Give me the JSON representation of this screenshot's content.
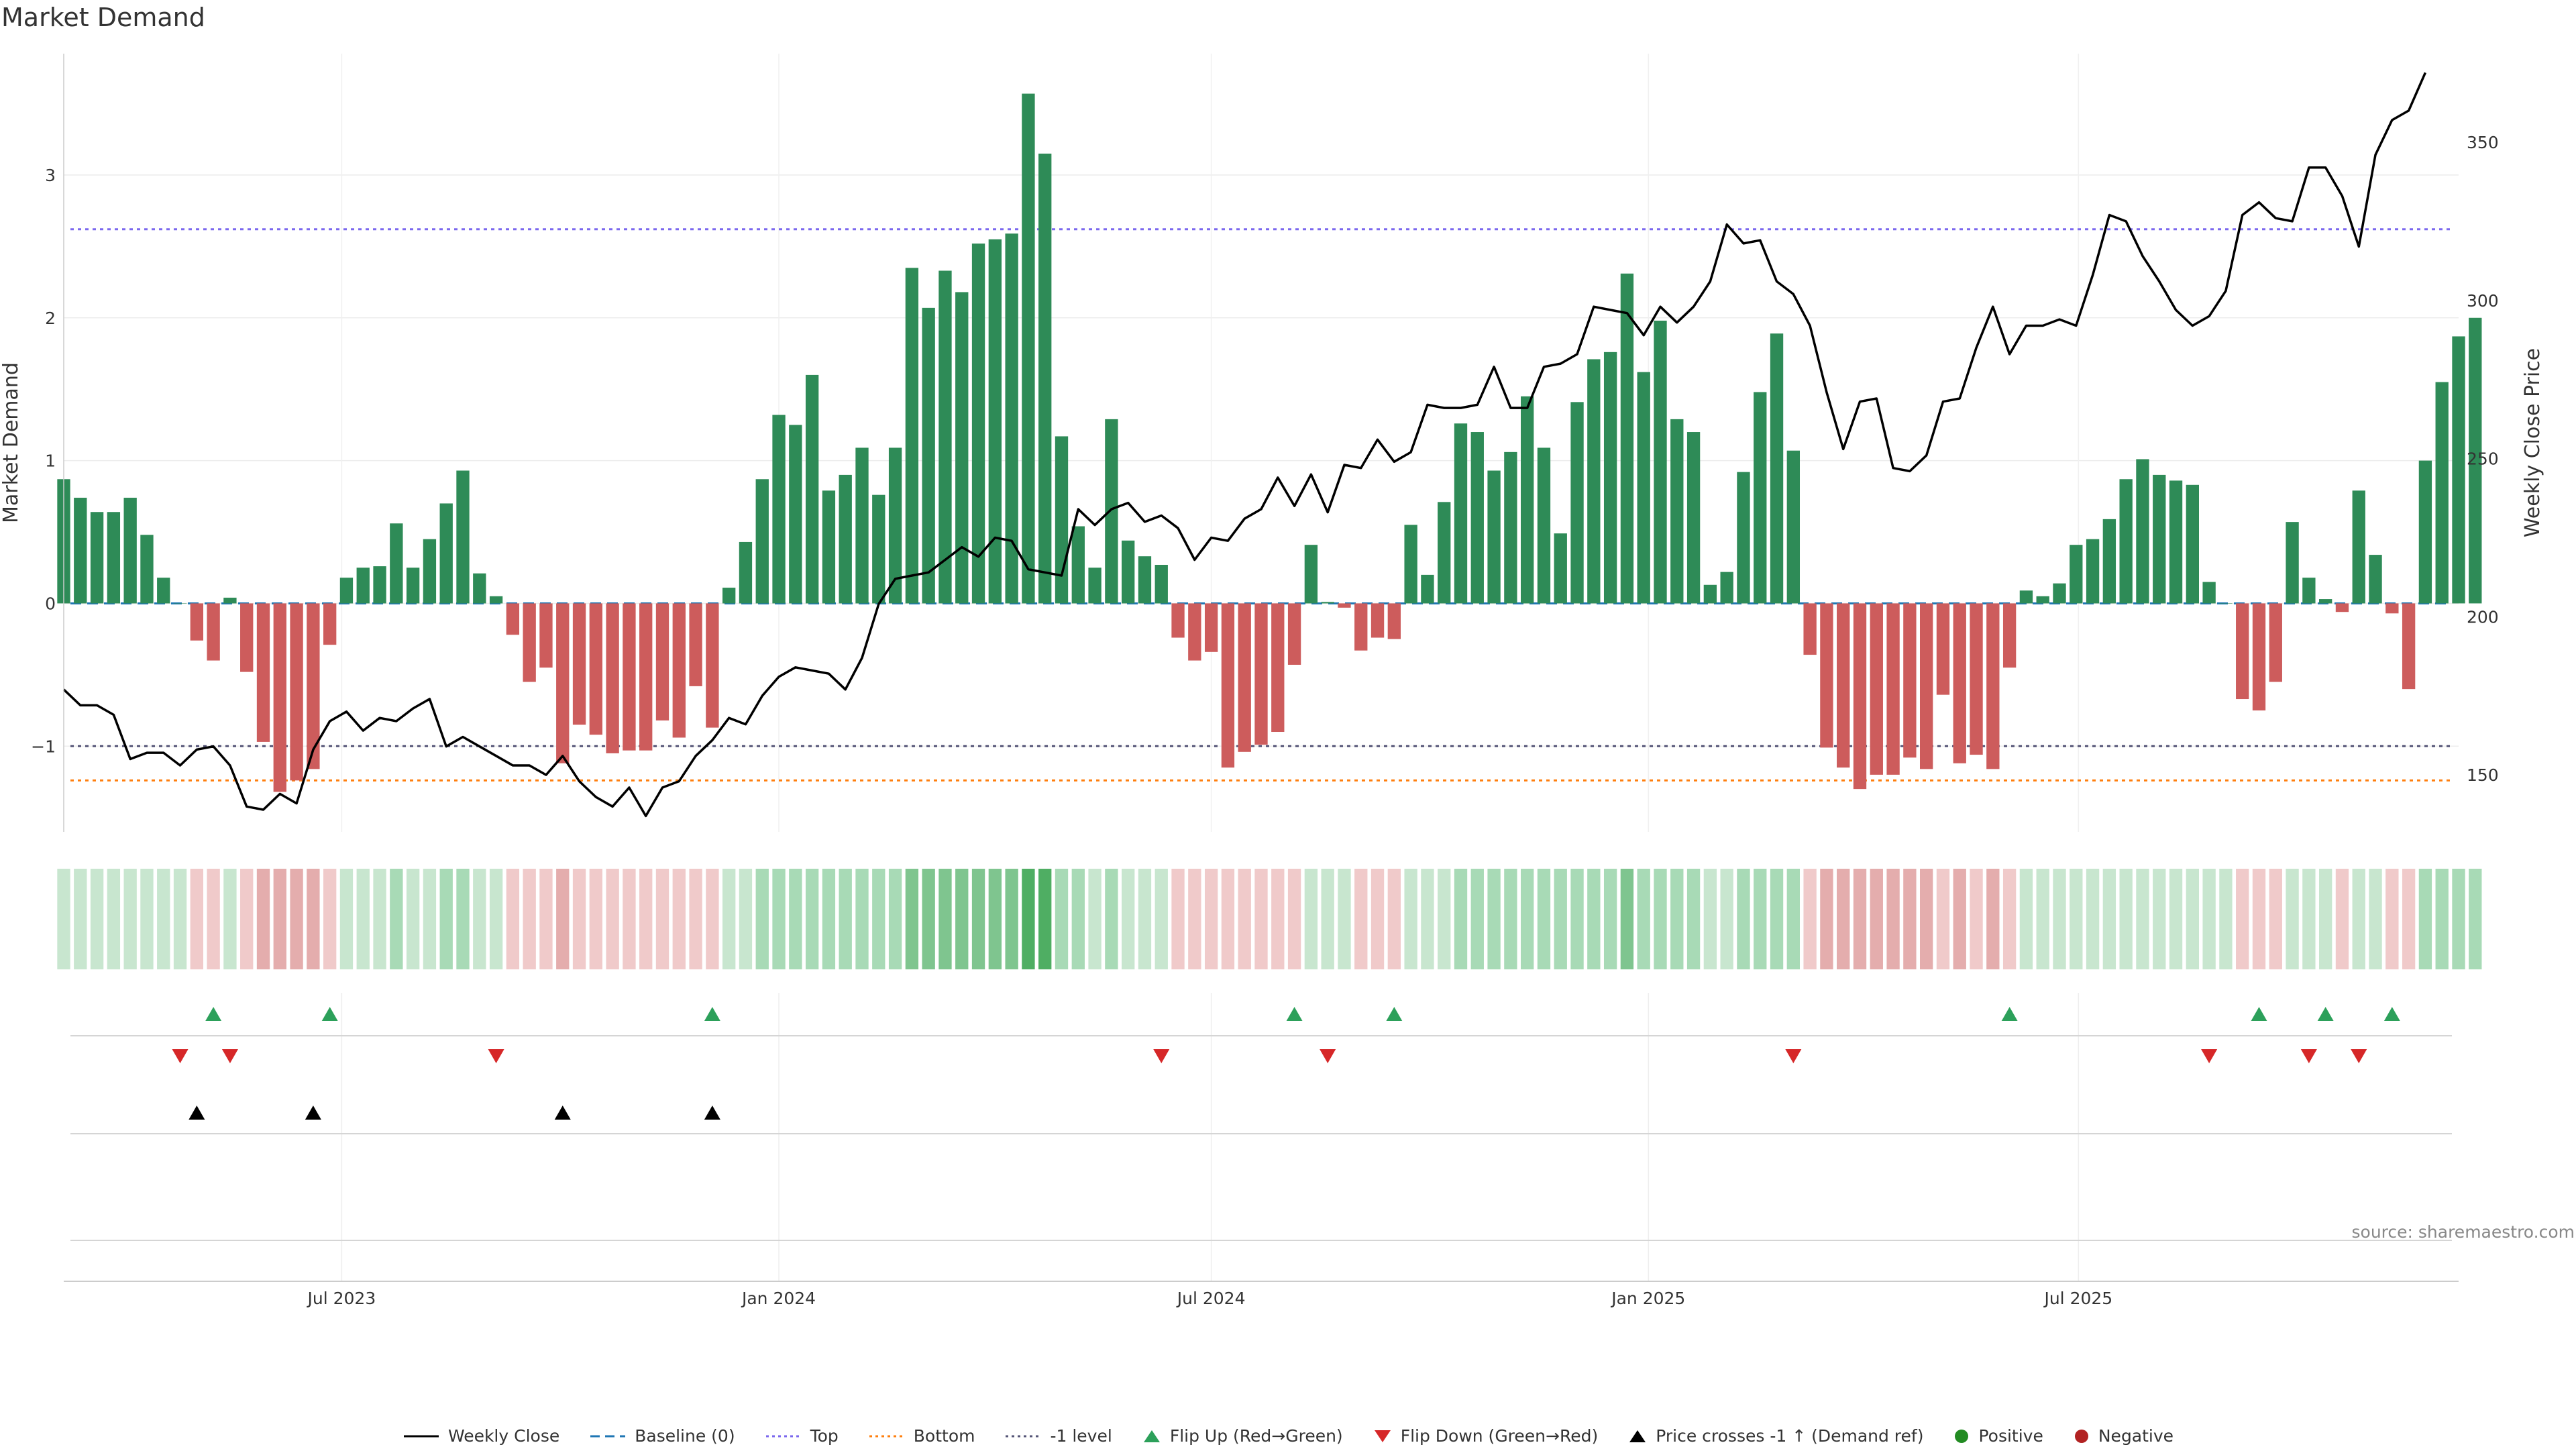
{
  "chart_data": {
    "type": "bar",
    "title": "Market Demand",
    "ylabel": "Market Demand",
    "y2label": "Weekly Close Price",
    "ylim": [
      -1.6,
      3.85
    ],
    "y2lim": [
      132,
      378
    ],
    "yticks": [
      -1,
      0,
      1,
      2,
      3
    ],
    "y2ticks": [
      150,
      200,
      250,
      300,
      350
    ],
    "x_start": "2023-03-06",
    "x_step_days": 7,
    "x_range": [
      "2023-03-06",
      "2025-12-08"
    ],
    "xticks": [
      {
        "date": "2023-07-01",
        "label": "Jul 2023"
      },
      {
        "date": "2024-01-01",
        "label": "Jan 2024"
      },
      {
        "date": "2024-07-01",
        "label": "Jul 2024"
      },
      {
        "date": "2025-01-01",
        "label": "Jan 2025"
      },
      {
        "date": "2025-07-01",
        "label": "Jul 2025"
      }
    ],
    "hlines": [
      {
        "name": "Top",
        "value": 2.62
      },
      {
        "name": "-1 level",
        "value": -1.0
      },
      {
        "name": "Bottom",
        "value": -1.24
      }
    ],
    "demand": [
      0.87,
      0.74,
      0.64,
      0.64,
      0.74,
      0.48,
      0.18,
      0.0,
      -0.26,
      -0.4,
      0.04,
      -0.48,
      -0.97,
      -1.32,
      -1.24,
      -1.16,
      -0.29,
      0.18,
      0.25,
      0.26,
      0.56,
      0.25,
      0.45,
      0.7,
      0.93,
      0.21,
      0.05,
      -0.22,
      -0.55,
      -0.45,
      -1.12,
      -0.85,
      -0.92,
      -1.05,
      -1.03,
      -1.03,
      -0.82,
      -0.94,
      -0.58,
      -0.87,
      0.11,
      0.43,
      0.87,
      1.32,
      1.25,
      1.6,
      0.79,
      0.9,
      1.09,
      0.76,
      1.09,
      2.35,
      2.07,
      2.33,
      2.18,
      2.52,
      2.55,
      2.59,
      3.57,
      3.15,
      1.17,
      0.54,
      0.25,
      1.29,
      0.44,
      0.33,
      0.27,
      -0.24,
      -0.4,
      -0.34,
      -1.15,
      -1.04,
      -0.99,
      -0.9,
      -0.43,
      0.41,
      0.01,
      -0.03,
      -0.33,
      -0.24,
      -0.25,
      0.55,
      0.2,
      0.71,
      1.26,
      1.2,
      0.93,
      1.06,
      1.45,
      1.09,
      0.49,
      1.41,
      1.71,
      1.76,
      2.31,
      1.62,
      1.98,
      1.29,
      1.2,
      0.13,
      0.22,
      0.92,
      1.48,
      1.89,
      1.07,
      -0.36,
      -1.01,
      -1.15,
      -1.3,
      -1.2,
      -1.2,
      -1.08,
      -1.16,
      -0.64,
      -1.12,
      -1.06,
      -1.16,
      -0.45,
      0.09,
      0.05,
      0.14,
      0.41,
      0.45,
      0.59,
      0.87,
      1.01,
      0.9,
      0.86,
      0.83,
      0.15,
      0.0,
      -0.67,
      -0.75,
      -0.55,
      0.57,
      0.18,
      0.03,
      -0.06,
      0.79,
      0.34,
      -0.07,
      -0.6,
      1.0,
      1.55,
      1.87,
      2.0
    ],
    "heat": [
      1,
      1,
      1,
      1,
      1,
      1,
      1,
      1,
      -1,
      -1,
      1,
      -1,
      -2,
      -2,
      -2,
      -2,
      -1,
      1,
      1,
      1,
      2,
      1,
      1,
      2,
      2,
      1,
      1,
      -1,
      -1,
      -1,
      -2,
      -1,
      -1,
      -1,
      -1,
      -1,
      -1,
      -1,
      -1,
      -1,
      1,
      1,
      2,
      2,
      2,
      2,
      2,
      2,
      2,
      2,
      2,
      3,
      3,
      3,
      3,
      3,
      3,
      3,
      4,
      4,
      2,
      2,
      1,
      2,
      1,
      1,
      1,
      -1,
      -1,
      -1,
      -1,
      -1,
      -1,
      -1,
      -1,
      1,
      1,
      1,
      -1,
      -1,
      -1,
      1,
      1,
      1,
      2,
      2,
      2,
      2,
      2,
      2,
      2,
      2,
      2,
      2,
      3,
      2,
      2,
      2,
      2,
      1,
      1,
      2,
      2,
      2,
      2,
      -1,
      -2,
      -2,
      -2,
      -2,
      -2,
      -2,
      -2,
      -1,
      -2,
      -1,
      -2,
      -1,
      1,
      1,
      1,
      1,
      1,
      1,
      1,
      1,
      1,
      1,
      1,
      1,
      1,
      -1,
      -1,
      -1,
      1,
      1,
      1,
      -1,
      1,
      1,
      -1,
      -1,
      2,
      2,
      2,
      2
    ],
    "series": [
      {
        "name": "Weekly Close",
        "values": [
          177,
          172,
          172,
          169,
          155,
          157,
          157,
          153,
          158,
          159,
          153,
          140,
          139,
          144,
          141,
          158,
          167,
          170,
          164,
          168,
          167,
          171,
          174,
          159,
          162,
          159,
          156,
          153,
          153,
          150,
          156,
          148,
          143,
          140,
          146,
          137,
          146,
          148,
          156,
          161,
          168,
          166,
          175,
          181,
          184,
          183,
          182,
          177,
          187,
          204,
          212,
          213,
          214,
          218,
          222,
          219,
          225,
          224,
          215,
          214,
          213,
          234,
          229,
          234,
          236,
          230,
          232,
          228,
          218,
          225,
          224,
          231,
          234,
          244,
          235,
          245,
          233,
          248,
          247,
          256,
          249,
          252,
          267,
          266,
          266,
          267,
          279,
          266,
          266,
          279,
          280,
          283,
          298,
          297,
          296,
          289,
          298,
          293,
          298,
          306,
          324,
          318,
          319,
          306,
          302,
          292,
          271,
          253,
          268,
          269,
          247,
          246,
          251,
          268,
          269,
          285,
          298,
          283,
          292,
          292,
          294,
          292,
          308,
          327,
          325,
          314,
          306,
          297,
          292,
          295,
          303,
          327,
          331,
          326,
          325,
          342,
          342,
          333,
          317,
          346,
          357,
          360,
          372
        ]
      }
    ],
    "flip_up": [
      9,
      16,
      39,
      74,
      80,
      117,
      132,
      136,
      140
    ],
    "flip_down": [
      7,
      10,
      26,
      66,
      76,
      104,
      129,
      135,
      138
    ],
    "price_crosses": [
      8,
      15,
      30,
      39
    ]
  },
  "legend": {
    "weekly_close": "Weekly Close",
    "baseline": "Baseline (0)",
    "top": "Top",
    "bottom": "Bottom",
    "minus1": "-1 level",
    "flip_up": "Flip Up (Red→Green)",
    "flip_down": "Flip Down (Green→Red)",
    "price_cross": "Price crosses -1 ↑ (Demand ref)",
    "positive": "Positive",
    "negative": "Negative"
  },
  "source": "source: sharemaestro.com",
  "colors": {
    "positive": "#2e8b57",
    "negative": "#cd5c5c",
    "price": "#000000",
    "baseline": "#1f77b4",
    "top": "#7b68ee",
    "bottom": "#ff7f0e",
    "minus1": "#555577",
    "flip_up": "#2ca05a",
    "flip_down": "#d62728",
    "pos_dot": "#228b22",
    "neg_dot": "#b22222"
  }
}
